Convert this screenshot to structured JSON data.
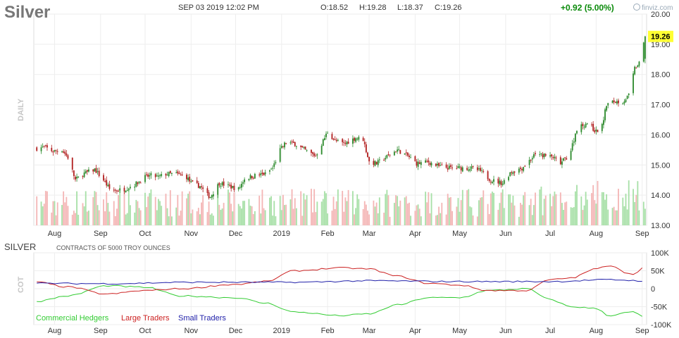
{
  "header": {
    "ticker": "Silver",
    "datetime": "SEP 03 2019 12:02 PM",
    "open": "O:18.52",
    "high": "H:19.28",
    "low": "L:18.37",
    "close": "C:19.26",
    "change": "+0.92 (5.00%)",
    "brand": "finviz.com"
  },
  "colors": {
    "up": "#2e8b2e",
    "down": "#b22222",
    "vol_up": "#a8e0a8",
    "vol_down": "#f4b6b6",
    "grid": "#eeeeee",
    "price_badge": "#ffff33",
    "commercial": "#33cc33",
    "large": "#cc2222",
    "small": "#2222aa"
  },
  "main_panel": {
    "side_label": "DAILY",
    "price_ticks": [
      "20.00",
      "19.00",
      "18.00",
      "17.00",
      "16.00",
      "15.00",
      "14.00",
      "13.00"
    ],
    "last_price_label": "19.26",
    "x_labels": [
      "Aug",
      "Sep",
      "Oct",
      "Nov",
      "Dec",
      "2019",
      "Feb",
      "Mar",
      "Apr",
      "May",
      "Jun",
      "Jul",
      "Aug",
      "Sep"
    ]
  },
  "cot_panel": {
    "title": "SILVER",
    "subtitle": "CONTRACTS OF 5000 TROY OUNCES",
    "side_label": "COT",
    "y_ticks": [
      "100K",
      "50K",
      "0",
      "-50K",
      "-100K"
    ],
    "legend": [
      "Commercial Hedgers",
      "Large Traders",
      "Small Traders"
    ],
    "x_labels": [
      "Aug",
      "Sep",
      "Oct",
      "Nov",
      "Dec",
      "2019",
      "Feb",
      "Mar",
      "Apr",
      "May",
      "Jun",
      "Jul",
      "Aug",
      "Sep"
    ]
  },
  "chart_data": [
    {
      "type": "candlestick",
      "title": "Silver",
      "ylim": [
        13.0,
        20.0
      ],
      "close_anchors": [
        [
          "2018-07-20",
          15.55
        ],
        [
          "2018-07-25",
          15.6
        ],
        [
          "2018-07-31",
          15.45
        ],
        [
          "2018-08-06",
          15.5
        ],
        [
          "2018-08-10",
          15.25
        ],
        [
          "2018-08-13",
          14.8
        ],
        [
          "2018-08-15",
          14.5
        ],
        [
          "2018-08-20",
          14.7
        ],
        [
          "2018-08-28",
          14.85
        ],
        [
          "2018-09-03",
          14.5
        ],
        [
          "2018-09-07",
          14.2
        ],
        [
          "2018-09-11",
          14.15
        ],
        [
          "2018-09-17",
          14.2
        ],
        [
          "2018-09-24",
          14.35
        ],
        [
          "2018-10-01",
          14.6
        ],
        [
          "2018-10-05",
          14.65
        ],
        [
          "2018-10-10",
          14.6
        ],
        [
          "2018-10-15",
          14.7
        ],
        [
          "2018-10-22",
          14.7
        ],
        [
          "2018-10-29",
          14.6
        ],
        [
          "2018-11-01",
          14.4
        ],
        [
          "2018-11-07",
          14.3
        ],
        [
          "2018-11-12",
          14.0
        ],
        [
          "2018-11-14",
          13.95
        ],
        [
          "2018-11-20",
          14.4
        ],
        [
          "2018-11-26",
          14.3
        ],
        [
          "2018-12-03",
          14.2
        ],
        [
          "2018-12-07",
          14.55
        ],
        [
          "2018-12-14",
          14.65
        ],
        [
          "2018-12-21",
          14.7
        ],
        [
          "2018-12-26",
          14.9
        ],
        [
          "2018-12-31",
          15.5
        ],
        [
          "2019-01-04",
          15.75
        ],
        [
          "2019-01-10",
          15.7
        ],
        [
          "2019-01-18",
          15.45
        ],
        [
          "2019-01-24",
          15.3
        ],
        [
          "2019-01-29",
          15.8
        ],
        [
          "2019-02-01",
          16.1
        ],
        [
          "2019-02-06",
          15.8
        ],
        [
          "2019-02-12",
          15.7
        ],
        [
          "2019-02-20",
          15.9
        ],
        [
          "2019-02-25",
          15.85
        ],
        [
          "2019-03-01",
          15.1
        ],
        [
          "2019-03-06",
          15.05
        ],
        [
          "2019-03-12",
          15.25
        ],
        [
          "2019-03-20",
          15.5
        ],
        [
          "2019-03-27",
          15.3
        ],
        [
          "2019-04-02",
          15.05
        ],
        [
          "2019-04-10",
          15.1
        ],
        [
          "2019-04-17",
          14.95
        ],
        [
          "2019-04-25",
          14.9
        ],
        [
          "2019-05-01",
          14.9
        ],
        [
          "2019-05-08",
          14.9
        ],
        [
          "2019-05-15",
          14.8
        ],
        [
          "2019-05-22",
          14.5
        ],
        [
          "2019-05-30",
          14.4
        ],
        [
          "2019-06-04",
          14.75
        ],
        [
          "2019-06-12",
          14.9
        ],
        [
          "2019-06-20",
          15.3
        ],
        [
          "2019-06-25",
          15.35
        ],
        [
          "2019-06-28",
          15.3
        ],
        [
          "2019-07-03",
          15.25
        ],
        [
          "2019-07-08",
          15.05
        ],
        [
          "2019-07-12",
          15.25
        ],
        [
          "2019-07-15",
          15.5
        ],
        [
          "2019-07-19",
          16.2
        ],
        [
          "2019-07-26",
          16.4
        ],
        [
          "2019-08-01",
          16.1
        ],
        [
          "2019-08-05",
          16.3
        ],
        [
          "2019-08-08",
          17.0
        ],
        [
          "2019-08-13",
          17.1
        ],
        [
          "2019-08-19",
          17.1
        ],
        [
          "2019-08-23",
          17.3
        ],
        [
          "2019-08-27",
          18.2
        ],
        [
          "2019-08-30",
          18.35
        ],
        [
          "2019-09-03",
          19.26
        ]
      ],
      "last": {
        "open": 18.52,
        "high": 19.28,
        "low": 18.37,
        "close": 19.26
      }
    },
    {
      "type": "line",
      "title": "SILVER",
      "ylim": [
        -100000,
        100000
      ],
      "series": [
        {
          "name": "Commercial Hedgers",
          "points": [
            [
              "2018-07-20",
              -35000
            ],
            [
              "2018-08-10",
              -20000
            ],
            [
              "2018-09-05",
              8000
            ],
            [
              "2018-10-01",
              4000
            ],
            [
              "2018-10-25",
              -20000
            ],
            [
              "2018-12-01",
              -25000
            ],
            [
              "2018-12-21",
              -40000
            ],
            [
              "2019-01-10",
              -65000
            ],
            [
              "2019-02-10",
              -75000
            ],
            [
              "2019-03-01",
              -70000
            ],
            [
              "2019-03-20",
              -45000
            ],
            [
              "2019-04-10",
              -25000
            ],
            [
              "2019-05-01",
              -25000
            ],
            [
              "2019-05-20",
              -5000
            ],
            [
              "2019-06-15",
              0
            ],
            [
              "2019-07-01",
              -30000
            ],
            [
              "2019-07-15",
              -50000
            ],
            [
              "2019-08-01",
              -55000
            ],
            [
              "2019-08-10",
              -75000
            ],
            [
              "2019-08-25",
              -65000
            ],
            [
              "2019-09-03",
              -78000
            ]
          ]
        },
        {
          "name": "Large Traders",
          "points": [
            [
              "2018-07-20",
              18000
            ],
            [
              "2018-08-10",
              5000
            ],
            [
              "2018-09-05",
              -15000
            ],
            [
              "2018-10-01",
              -5000
            ],
            [
              "2018-10-25",
              0
            ],
            [
              "2018-12-01",
              12000
            ],
            [
              "2018-12-21",
              20000
            ],
            [
              "2019-01-10",
              50000
            ],
            [
              "2019-02-10",
              58000
            ],
            [
              "2019-03-01",
              55000
            ],
            [
              "2019-03-20",
              35000
            ],
            [
              "2019-04-10",
              15000
            ],
            [
              "2019-05-01",
              10000
            ],
            [
              "2019-05-20",
              -5000
            ],
            [
              "2019-06-15",
              -5000
            ],
            [
              "2019-07-01",
              25000
            ],
            [
              "2019-07-15",
              30000
            ],
            [
              "2019-08-01",
              55000
            ],
            [
              "2019-08-10",
              65000
            ],
            [
              "2019-08-25",
              40000
            ],
            [
              "2019-09-03",
              60000
            ]
          ]
        },
        {
          "name": "Small Traders",
          "points": [
            [
              "2018-07-20",
              15000
            ],
            [
              "2018-09-05",
              14000
            ],
            [
              "2018-11-01",
              18000
            ],
            [
              "2019-01-10",
              18000
            ],
            [
              "2019-03-01",
              22000
            ],
            [
              "2019-05-01",
              20000
            ],
            [
              "2019-07-01",
              20000
            ],
            [
              "2019-08-10",
              25000
            ],
            [
              "2019-09-03",
              22000
            ]
          ]
        }
      ]
    }
  ]
}
